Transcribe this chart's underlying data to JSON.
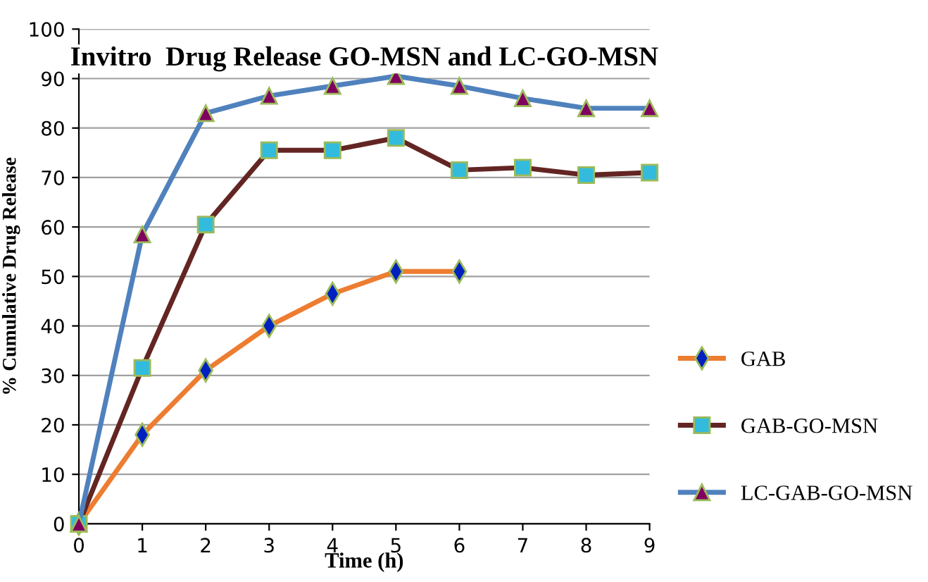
{
  "chart_data": {
    "type": "line",
    "title": "Invitro  Drug Release GO-MSN and LC-GO-MSN",
    "xlabel": "Time (h)",
    "ylabel": "% Cumulative Drug Release",
    "x": [
      0,
      1,
      2,
      3,
      4,
      5,
      6,
      7,
      8,
      9
    ],
    "series": [
      {
        "name": "GAB",
        "color": "#ed7d31",
        "marker": "diamond",
        "values": [
          0,
          18,
          31,
          40,
          46.5,
          51,
          51,
          null,
          null,
          null
        ]
      },
      {
        "name": "GAB-GO-MSN",
        "color": "#632523",
        "marker": "square",
        "values": [
          0,
          31.5,
          60.5,
          75.5,
          75.5,
          78,
          71.5,
          72,
          70.5,
          71
        ]
      },
      {
        "name": "LC-GAB-GO-MSN",
        "color": "#4f81bd",
        "marker": "triangle",
        "values": [
          0,
          58.5,
          83,
          86.5,
          88.5,
          90.5,
          88.5,
          86,
          84,
          84
        ]
      }
    ],
    "xlim": [
      0,
      9
    ],
    "xticks": [
      0,
      1,
      2,
      3,
      4,
      5,
      6,
      7,
      8,
      9
    ],
    "ylim": [
      0,
      100
    ],
    "yticks": [
      0,
      10,
      20,
      30,
      40,
      50,
      60,
      70,
      80,
      90,
      100
    ],
    "grid": "y",
    "legend": "bottom right"
  }
}
